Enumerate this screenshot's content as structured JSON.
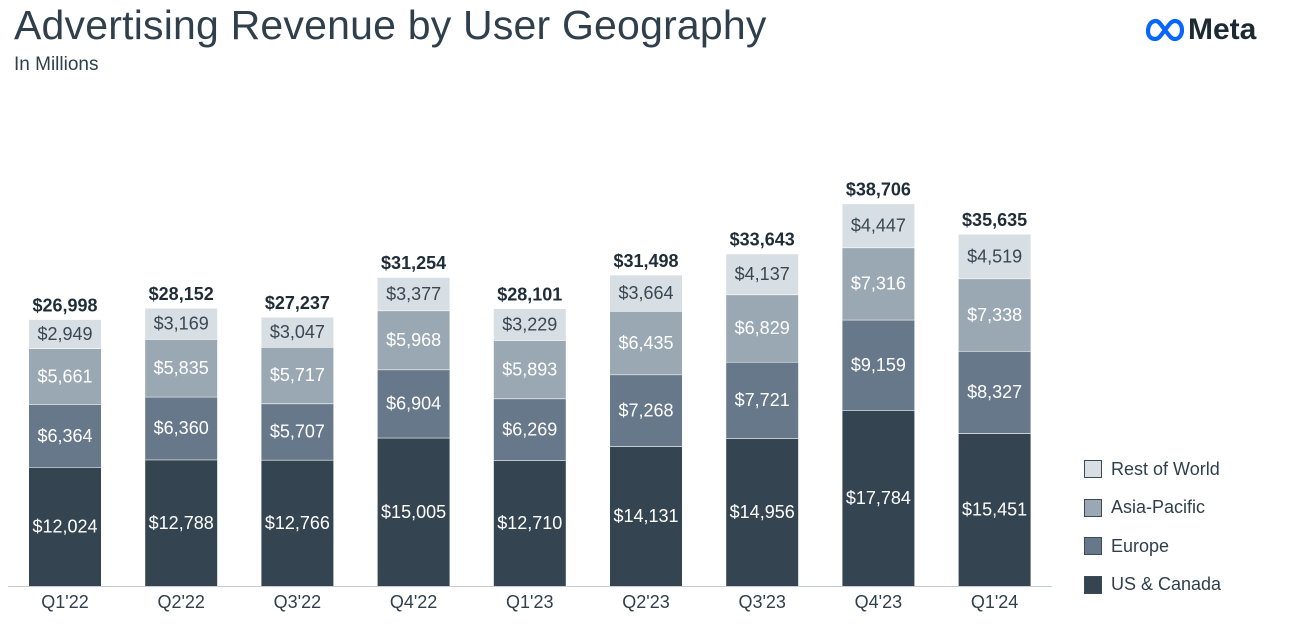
{
  "header": {
    "title": "Advertising Revenue by User Geography",
    "subtitle": "In Millions"
  },
  "brand": {
    "logo_text": "Meta",
    "logo_color": "#0866ff"
  },
  "chart_data": {
    "type": "bar",
    "stacked": true,
    "title": "Advertising Revenue by User Geography",
    "subtitle": "In Millions",
    "xlabel": "",
    "ylabel": "",
    "grid": false,
    "legend_position": "right",
    "categories": [
      "Q1'22",
      "Q2'22",
      "Q3'22",
      "Q4'22",
      "Q1'23",
      "Q2'23",
      "Q3'23",
      "Q4'23",
      "Q1'24"
    ],
    "totals": [
      "$26,998",
      "$28,152",
      "$27,237",
      "$31,254",
      "$28,101",
      "$31,498",
      "$33,643",
      "$38,706",
      "$35,635"
    ],
    "series": [
      {
        "name": "US & Canada",
        "color": "#344551",
        "label_color": "#ffffff",
        "values": [
          12024,
          12788,
          12766,
          15005,
          12710,
          14131,
          14956,
          17784,
          15451
        ],
        "labels": [
          "$12,024",
          "$12,788",
          "$12,766",
          "$15,005",
          "$12,710",
          "$14,131",
          "$14,956",
          "$17,784",
          "$15,451"
        ]
      },
      {
        "name": "Europe",
        "color": "#67788a",
        "label_color": "#ffffff",
        "values": [
          6364,
          6360,
          5707,
          6904,
          6269,
          7268,
          7721,
          9159,
          8327
        ],
        "labels": [
          "$6,364",
          "$6,360",
          "$5,707",
          "$6,904",
          "$6,269",
          "$7,268",
          "$7,721",
          "$9,159",
          "$8,327"
        ]
      },
      {
        "name": "Asia-Pacific",
        "color": "#9aa8b4",
        "label_color": "#ffffff",
        "values": [
          5661,
          5835,
          5717,
          5968,
          5893,
          6435,
          6829,
          7316,
          7338
        ],
        "labels": [
          "$5,661",
          "$5,835",
          "$5,717",
          "$5,968",
          "$5,893",
          "$6,435",
          "$6,829",
          "$7,316",
          "$7,338"
        ]
      },
      {
        "name": "Rest of World",
        "color": "#d7dee4",
        "label_color": "#3a4752",
        "values": [
          2949,
          3169,
          3047,
          3377,
          3229,
          3664,
          4137,
          4447,
          4519
        ],
        "labels": [
          "$2,949",
          "$3,169",
          "$3,047",
          "$3,377",
          "$3,229",
          "$3,664",
          "$4,137",
          "$4,447",
          "$4,519"
        ]
      }
    ],
    "legend_order": [
      "Rest of World",
      "Asia-Pacific",
      "Europe",
      "US & Canada"
    ]
  }
}
